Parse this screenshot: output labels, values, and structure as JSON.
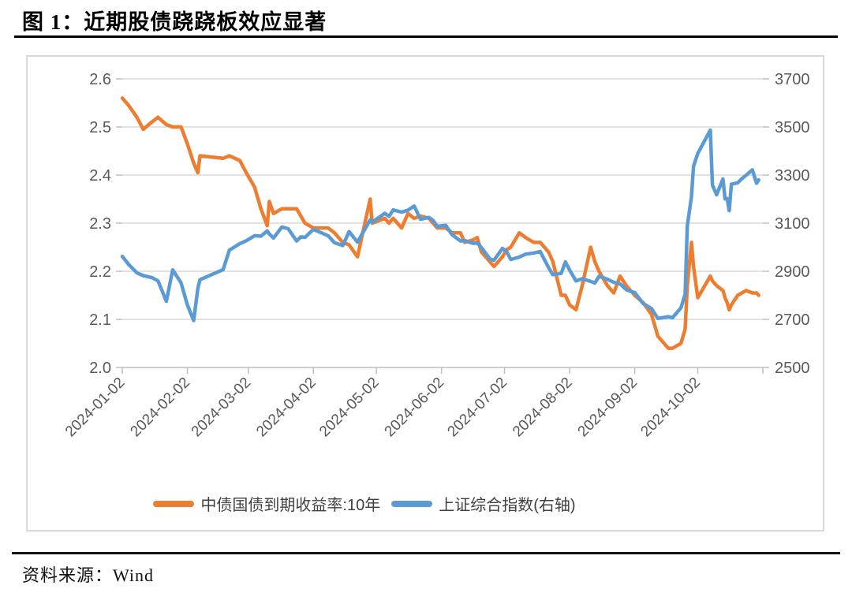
{
  "title": "图 1：近期股债跷跷板效应显著",
  "footer": {
    "source_label": "资料来源：Wind"
  },
  "chart_data": {
    "type": "line",
    "title": "近期股债跷跷板效应显著",
    "x_range": [
      "2024-01-02",
      "2024-11-02"
    ],
    "x_ticks": [
      "2024-01-02",
      "2024-02-02",
      "2024-03-02",
      "2024-04-02",
      "2024-05-02",
      "2024-06-02",
      "2024-07-02",
      "2024-08-02",
      "2024-09-02",
      "2024-10-02"
    ],
    "left_axis": {
      "min": 2.0,
      "max": 2.6,
      "ticks": [
        "2.0",
        "2.1",
        "2.2",
        "2.3",
        "2.4",
        "2.5",
        "2.6"
      ]
    },
    "right_axis": {
      "min": 2500,
      "max": 3700,
      "ticks": [
        "2500",
        "2700",
        "2900",
        "3100",
        "3300",
        "3500",
        "3700"
      ]
    },
    "grid_on": true,
    "grid_color": "#d9d9d9",
    "axis_line_color": "#bfbfbf",
    "axis_text_color": "#595959",
    "legend_position": "bottom",
    "series": [
      {
        "name": "中债国债到期收益率:10年",
        "color": "#ED7D31",
        "axis": "left"
      },
      {
        "name": "上证综合指数(右轴)",
        "color": "#5B9BD5",
        "axis": "right"
      }
    ],
    "points": [
      [
        "2024-01-02",
        2.56,
        2962
      ],
      [
        "2024-01-05",
        2.545,
        2929
      ],
      [
        "2024-01-09",
        2.52,
        2893
      ],
      [
        "2024-01-12",
        2.495,
        2882
      ],
      [
        "2024-01-16",
        2.51,
        2874
      ],
      [
        "2024-01-19",
        2.52,
        2860
      ],
      [
        "2024-01-23",
        2.505,
        2775
      ],
      [
        "2024-01-26",
        2.5,
        2906
      ],
      [
        "2024-01-30",
        2.5,
        2852
      ],
      [
        "2024-02-02",
        2.465,
        2760
      ],
      [
        "2024-02-05",
        2.425,
        2695
      ],
      [
        "2024-02-07",
        2.405,
        2829
      ],
      [
        "2024-02-08",
        2.44,
        2865
      ],
      [
        "2024-02-19",
        2.435,
        2907
      ],
      [
        "2024-02-22",
        2.44,
        2988
      ],
      [
        "2024-02-27",
        2.43,
        3015
      ],
      [
        "2024-03-01",
        2.405,
        3027
      ],
      [
        "2024-03-05",
        2.375,
        3048
      ],
      [
        "2024-03-08",
        2.33,
        3046
      ],
      [
        "2024-03-11",
        2.295,
        3068
      ],
      [
        "2024-03-12",
        2.345,
        3055
      ],
      [
        "2024-03-14",
        2.32,
        3038
      ],
      [
        "2024-03-18",
        2.33,
        3084
      ],
      [
        "2024-03-21",
        2.33,
        3077
      ],
      [
        "2024-03-25",
        2.33,
        3026
      ],
      [
        "2024-03-27",
        2.315,
        3043
      ],
      [
        "2024-03-29",
        2.3,
        3041
      ],
      [
        "2024-04-02",
        2.29,
        3074
      ],
      [
        "2024-04-09",
        2.29,
        3048
      ],
      [
        "2024-04-12",
        2.28,
        3019
      ],
      [
        "2024-04-16",
        2.26,
        3007
      ],
      [
        "2024-04-19",
        2.255,
        3065
      ],
      [
        "2024-04-23",
        2.23,
        3021
      ],
      [
        "2024-04-25",
        2.27,
        3052
      ],
      [
        "2024-04-29",
        2.35,
        3113
      ],
      [
        "2024-04-30",
        2.3,
        3104
      ],
      [
        "2024-05-06",
        2.31,
        3141
      ],
      [
        "2024-05-08",
        2.3,
        3128
      ],
      [
        "2024-05-10",
        2.31,
        3155
      ],
      [
        "2024-05-14",
        2.29,
        3146
      ],
      [
        "2024-05-17",
        2.32,
        3154
      ],
      [
        "2024-05-20",
        2.31,
        3171
      ],
      [
        "2024-05-23",
        2.315,
        3116
      ],
      [
        "2024-05-27",
        2.31,
        3124
      ],
      [
        "2024-05-29",
        2.3,
        3111
      ],
      [
        "2024-05-31",
        2.29,
        3087
      ],
      [
        "2024-06-04",
        2.29,
        3091
      ],
      [
        "2024-06-07",
        2.28,
        3052
      ],
      [
        "2024-06-11",
        2.28,
        3026
      ],
      [
        "2024-06-13",
        2.26,
        3028
      ],
      [
        "2024-06-17",
        2.265,
        3016
      ],
      [
        "2024-06-19",
        2.27,
        3018
      ],
      [
        "2024-06-21",
        2.24,
        2998
      ],
      [
        "2024-06-25",
        2.22,
        2951
      ],
      [
        "2024-06-27",
        2.21,
        2946
      ],
      [
        "2024-07-01",
        2.23,
        2995
      ],
      [
        "2024-07-03",
        2.245,
        2982
      ],
      [
        "2024-07-05",
        2.25,
        2949
      ],
      [
        "2024-07-09",
        2.28,
        2959
      ],
      [
        "2024-07-12",
        2.27,
        2971
      ],
      [
        "2024-07-16",
        2.26,
        2976
      ],
      [
        "2024-07-19",
        2.26,
        2982
      ],
      [
        "2024-07-23",
        2.24,
        2915
      ],
      [
        "2024-07-25",
        2.22,
        2886
      ],
      [
        "2024-07-29",
        2.15,
        2891
      ],
      [
        "2024-07-31",
        2.15,
        2939
      ],
      [
        "2024-08-02",
        2.13,
        2905
      ],
      [
        "2024-08-05",
        2.12,
        2860
      ],
      [
        "2024-08-08",
        2.17,
        2869
      ],
      [
        "2024-08-12",
        2.25,
        2858
      ],
      [
        "2024-08-14",
        2.22,
        2851
      ],
      [
        "2024-08-16",
        2.2,
        2879
      ],
      [
        "2024-08-20",
        2.17,
        2867
      ],
      [
        "2024-08-23",
        2.155,
        2854
      ],
      [
        "2024-08-26",
        2.19,
        2848
      ],
      [
        "2024-08-29",
        2.17,
        2823
      ],
      [
        "2024-09-02",
        2.15,
        2811
      ],
      [
        "2024-09-06",
        2.135,
        2766
      ],
      [
        "2024-09-10",
        2.11,
        2745
      ],
      [
        "2024-09-13",
        2.065,
        2704
      ],
      [
        "2024-09-18",
        2.04,
        2711
      ],
      [
        "2024-09-20",
        2.04,
        2707
      ],
      [
        "2024-09-24",
        2.05,
        2748
      ],
      [
        "2024-09-26",
        2.08,
        2805
      ],
      [
        "2024-09-27",
        2.17,
        3088
      ],
      [
        "2024-09-29",
        2.26,
        3210
      ],
      [
        "2024-09-30",
        2.21,
        3336
      ],
      [
        "2024-10-02",
        2.145,
        3390
      ],
      [
        "2024-10-08",
        2.19,
        3487
      ],
      [
        "2024-10-09",
        2.18,
        3258
      ],
      [
        "2024-10-11",
        2.17,
        3218
      ],
      [
        "2024-10-14",
        2.16,
        3284
      ],
      [
        "2024-10-15",
        2.145,
        3201
      ],
      [
        "2024-10-16",
        2.135,
        3202
      ],
      [
        "2024-10-17",
        2.12,
        3152
      ],
      [
        "2024-10-18",
        2.13,
        3262
      ],
      [
        "2024-10-21",
        2.15,
        3268
      ],
      [
        "2024-10-23",
        2.155,
        3285
      ],
      [
        "2024-10-25",
        2.16,
        3299
      ],
      [
        "2024-10-28",
        2.155,
        3322
      ],
      [
        "2024-10-30",
        2.155,
        3266
      ],
      [
        "2024-10-31",
        2.15,
        3280
      ]
    ]
  }
}
